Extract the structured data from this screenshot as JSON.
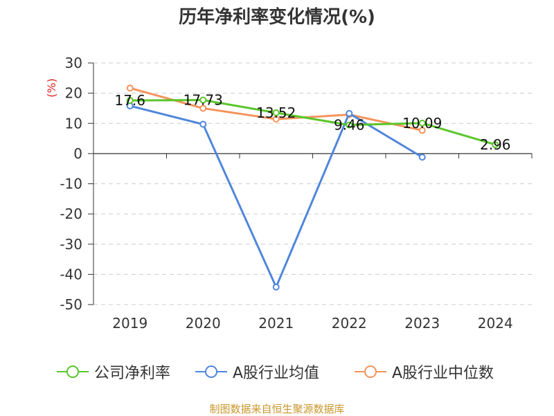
{
  "chart_data": {
    "type": "line",
    "title": "历年净利率变化情况(%)",
    "ylabel": "(%)",
    "categories": [
      "2019",
      "2020",
      "2021",
      "2022",
      "2023",
      "2024"
    ],
    "ylim": [
      -50,
      30
    ],
    "yticks": [
      30,
      20,
      10,
      0,
      -10,
      -20,
      -30,
      -40,
      -50
    ],
    "grid": true,
    "legend_position": "bottom",
    "series": [
      {
        "name": "公司净利率",
        "color": "#5ac629",
        "values": [
          17.6,
          17.73,
          13.52,
          9.46,
          10.09,
          2.96
        ],
        "data_labels": [
          "17.6",
          "17.73",
          "13.52",
          "9.46",
          "10.09",
          "2.96"
        ]
      },
      {
        "name": "A股行业均值",
        "color": "#4f86dc",
        "values": [
          15.8,
          9.7,
          -44.2,
          13.3,
          -1.2,
          null
        ]
      },
      {
        "name": "A股行业中位数",
        "color": "#f5935b",
        "values": [
          21.7,
          15.0,
          11.4,
          12.9,
          7.7,
          null
        ]
      }
    ]
  },
  "source_note": "制图数据来自恒生聚源数据库"
}
